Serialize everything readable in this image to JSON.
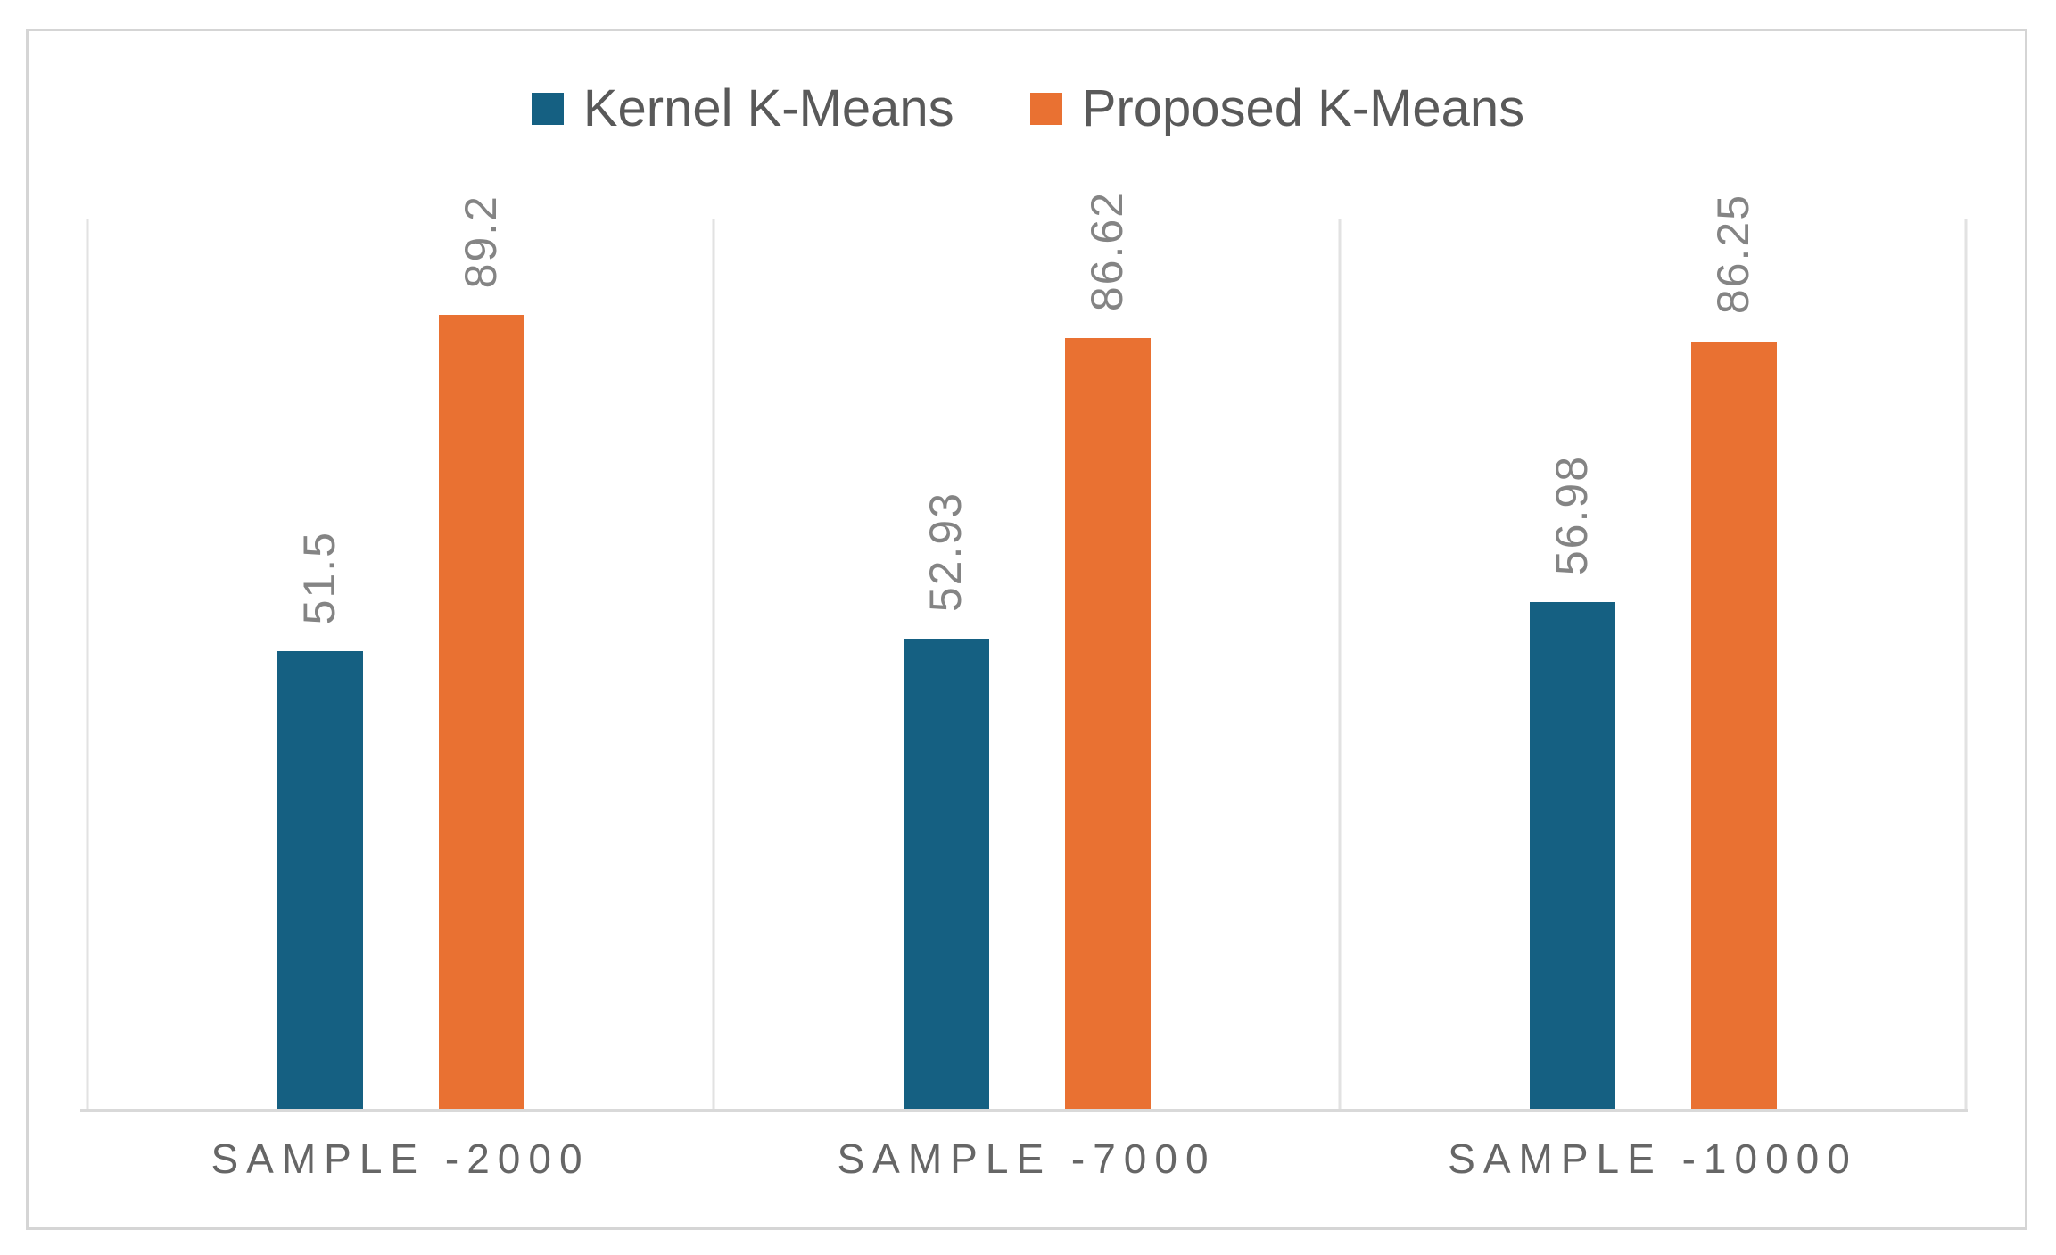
{
  "chart_data": {
    "type": "bar",
    "title": "",
    "xlabel": "",
    "ylabel": "",
    "categories": [
      "SAMPLE -2000",
      "SAMPLE -7000",
      "SAMPLE -10000"
    ],
    "series": [
      {
        "name": "Kernel K-Means",
        "color": "#156082",
        "values": [
          51.5,
          52.93,
          56.98
        ]
      },
      {
        "name": "Proposed K-Means",
        "color": "#E97132",
        "values": [
          89.2,
          86.62,
          86.25
        ]
      }
    ],
    "data_labels": [
      [
        "51.5",
        "89.2"
      ],
      [
        "52.93",
        "86.62"
      ],
      [
        "56.98",
        "86.25"
      ]
    ],
    "ylim": [
      0,
      100
    ],
    "grid": "vertical-category-boundary-lines-only",
    "legend_position": "top-center",
    "data_label_rotation": "90deg-bottom-to-top"
  },
  "style_colors": {
    "frame_border": "#D5D5D5",
    "gridline": "#E2E2E2",
    "axis_line": "#D9D9D9",
    "legend_text": "#595959",
    "data_label_text": "#848484",
    "category_text": "#666666"
  }
}
